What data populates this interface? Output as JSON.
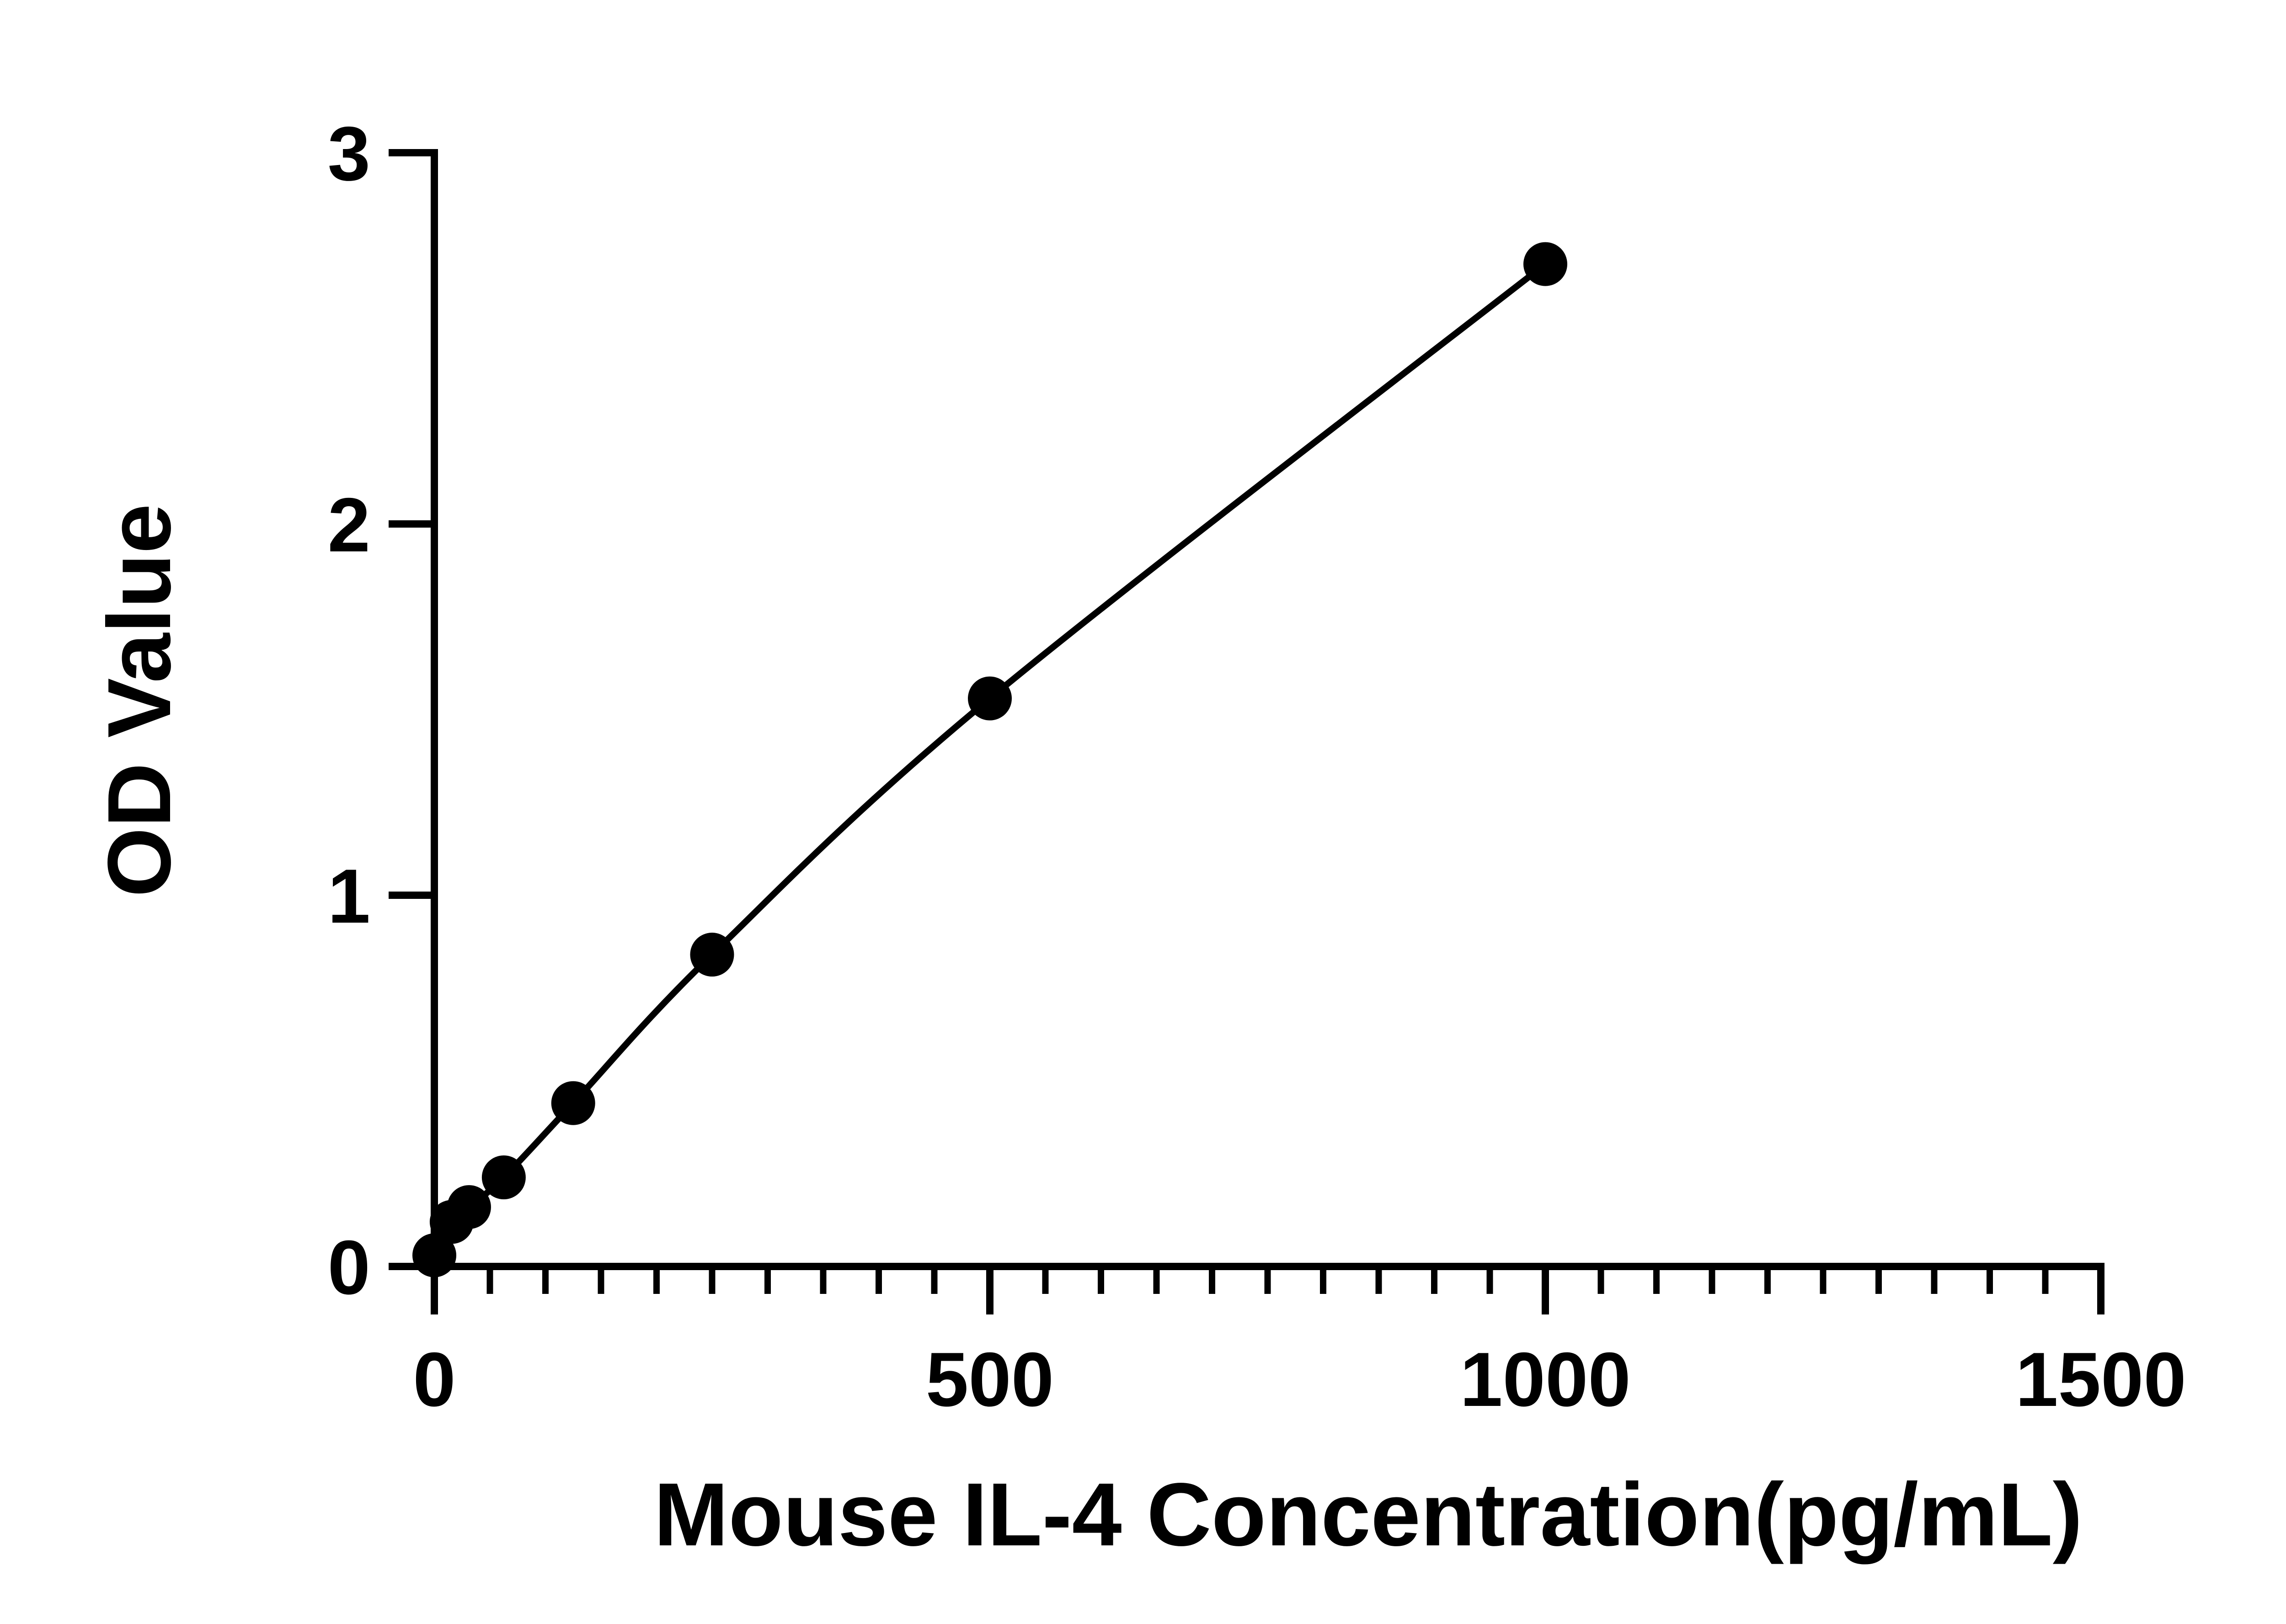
{
  "chart_data": {
    "type": "scatter",
    "title": "",
    "xlabel": "Mouse IL-4 Concentration(pg/mL)",
    "ylabel": "OD Value",
    "xlim": [
      0,
      1500
    ],
    "ylim": [
      0,
      3
    ],
    "x_ticks": [
      0,
      500,
      1000,
      1500
    ],
    "x_tick_labels": [
      "0",
      "500",
      "1000",
      "1500"
    ],
    "x_minor_step": 50,
    "y_ticks": [
      0,
      1,
      2,
      3
    ],
    "y_tick_labels": [
      "0",
      "1",
      "2",
      "3"
    ],
    "grid": false,
    "legend": "none",
    "series": [
      {
        "x": [
          0,
          15.6,
          31.25,
          62.5,
          125,
          250,
          500,
          1000
        ],
        "y": [
          0.03,
          0.12,
          0.16,
          0.24,
          0.44,
          0.84,
          1.53,
          2.7
        ],
        "fit_line": true,
        "color": "#000000"
      }
    ]
  }
}
